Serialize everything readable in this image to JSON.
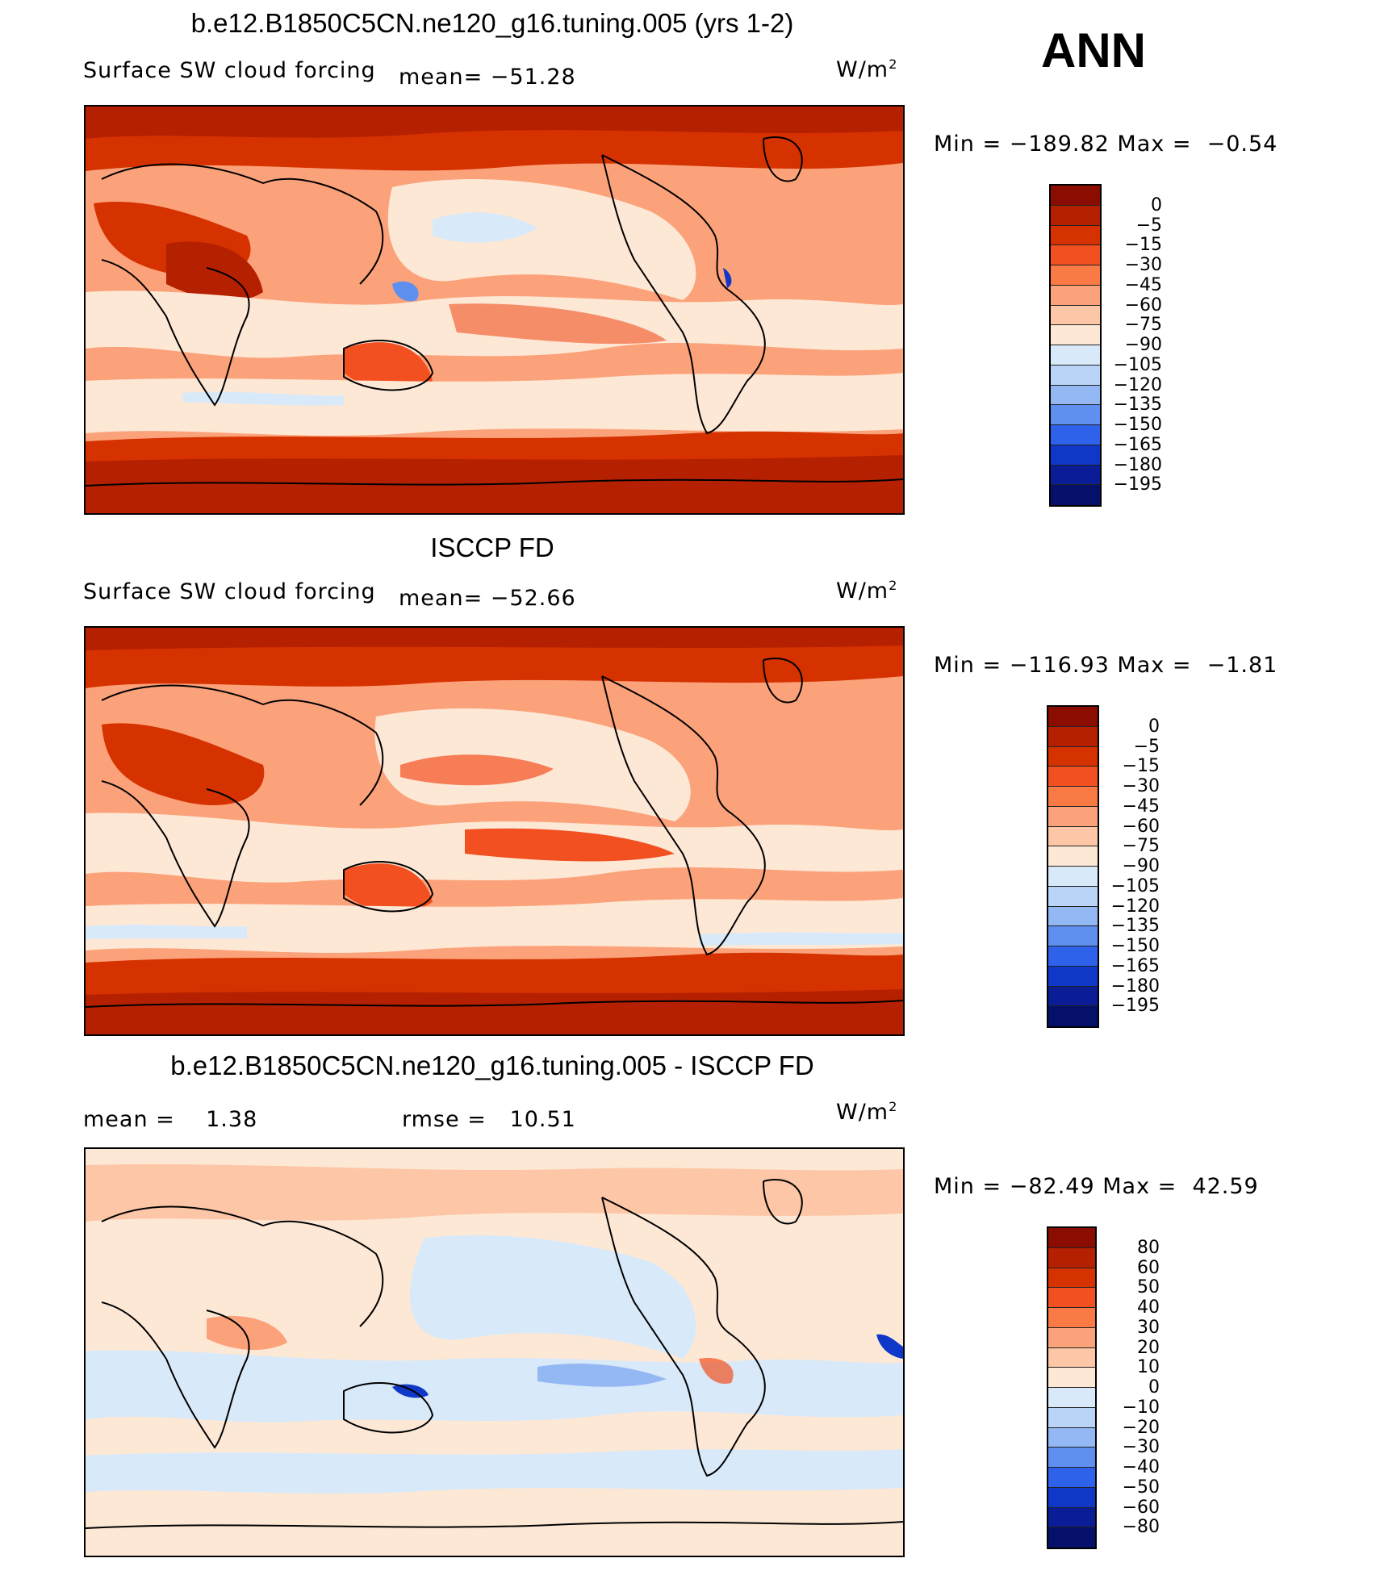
{
  "season": "ANN",
  "units": "W/m",
  "units_sup": "2",
  "panels": [
    {
      "title": "b.e12.B1850C5CN.ne120_g16.tuning.005 (yrs 1-2)",
      "left_label": "Surface SW cloud forcing",
      "mean_label": "mean=",
      "mean_value": "−51.28",
      "min_label": "Min",
      "min_value": "−189.82",
      "max_label": "Max",
      "max_value": "−0.54",
      "colorbar_labels": [
        "0",
        "−5",
        "−15",
        "−30",
        "−45",
        "−60",
        "−75",
        "−90",
        "−105",
        "−120",
        "−135",
        "−150",
        "−165",
        "−180",
        "−195"
      ]
    },
    {
      "title": "ISCCP FD",
      "left_label": "Surface SW cloud forcing",
      "mean_label": "mean=",
      "mean_value": "−52.66",
      "min_label": "Min",
      "min_value": "−116.93",
      "max_label": "Max",
      "max_value": "−1.81",
      "colorbar_labels": [
        "0",
        "−5",
        "−15",
        "−30",
        "−45",
        "−60",
        "−75",
        "−90",
        "−105",
        "−120",
        "−135",
        "−150",
        "−165",
        "−180",
        "−195"
      ]
    },
    {
      "title": "b.e12.B1850C5CN.ne120_g16.tuning.005 - ISCCP FD",
      "mean_label": "mean =",
      "mean_value": "1.38",
      "rmse_label": "rmse =",
      "rmse_value": "10.51",
      "min_label": "Min",
      "min_value": "−82.49",
      "max_label": "Max",
      "max_value": "42.59",
      "colorbar_labels": [
        "80",
        "60",
        "50",
        "40",
        "30",
        "20",
        "10",
        "0",
        "−10",
        "−20",
        "−30",
        "−40",
        "−50",
        "−60",
        "−80"
      ]
    }
  ],
  "colors": {
    "warm_scale": [
      "#8b0c00",
      "#b52000",
      "#d63200",
      "#f25020",
      "#fa7a45",
      "#fca27a",
      "#fdc6a6",
      "#fde8d6",
      "#d8e9f9",
      "#b9d4f6",
      "#93b8f4",
      "#5f90f0",
      "#2f62ea",
      "#1038c8",
      "#0a1c96",
      "#05106a"
    ],
    "diff_scale": [
      "#8b0c00",
      "#b52000",
      "#d63200",
      "#f25020",
      "#fa7a45",
      "#fca27a",
      "#fdc6a6",
      "#fde8d6",
      "#d8e9f9",
      "#b9d4f6",
      "#93b8f4",
      "#5f90f0",
      "#2f62ea",
      "#1038c8",
      "#0a1c96",
      "#05106a"
    ]
  }
}
